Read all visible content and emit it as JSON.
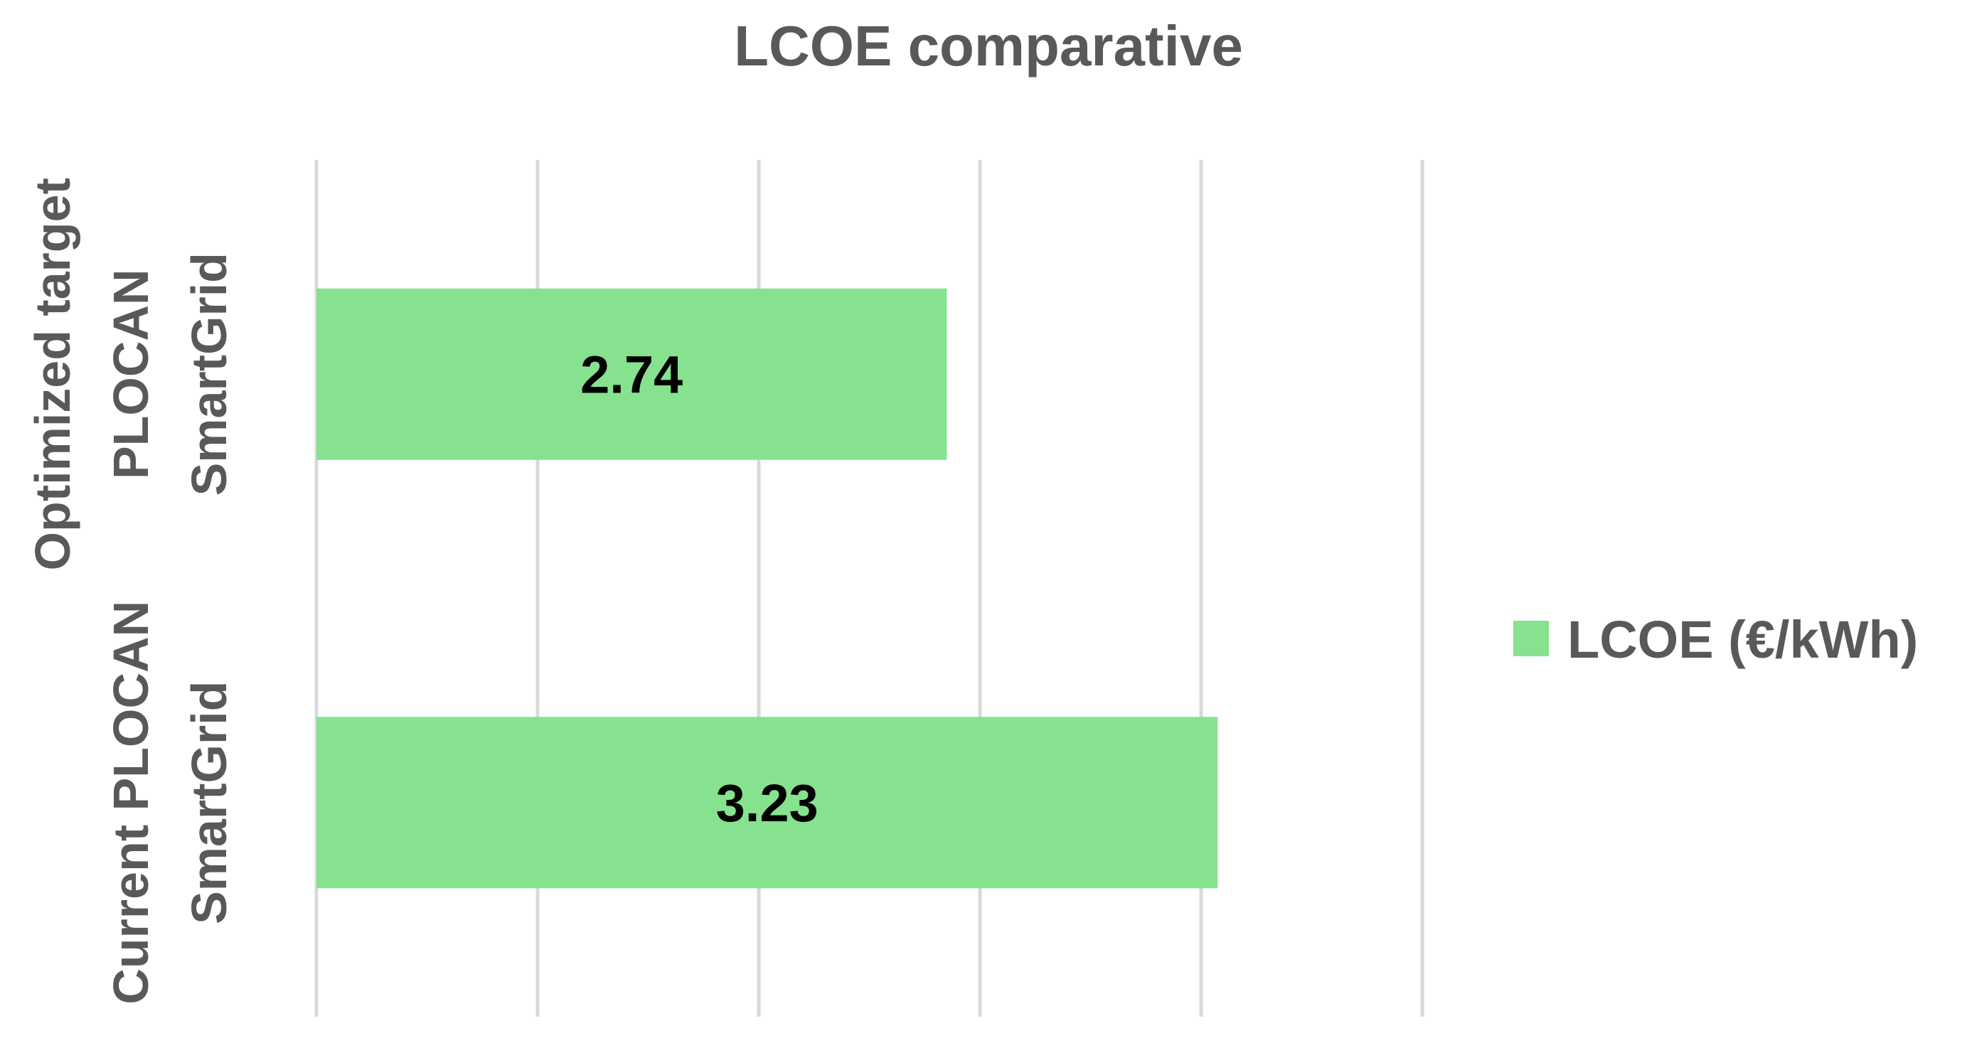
{
  "chart_data": {
    "type": "bar",
    "orientation": "horizontal",
    "title": "LCOE comparative",
    "categories": [
      [
        "Optimized target",
        "PLOCAN",
        "SmartGrid"
      ],
      [
        "Current PLOCAN",
        "SmartGrid"
      ]
    ],
    "series": [
      {
        "name": "LCOE (€/kWh)",
        "values": [
          2.74,
          3.23
        ],
        "color": "#86e28e"
      }
    ],
    "data_labels": [
      "2.74",
      "3.23"
    ],
    "xlim": [
      1.6,
      3.6
    ],
    "x_gridlines": [
      1.6,
      2.0,
      2.4,
      2.8,
      3.2,
      3.6
    ],
    "x_tick_labels_visible": false,
    "grid": true,
    "legend_position": "right"
  }
}
